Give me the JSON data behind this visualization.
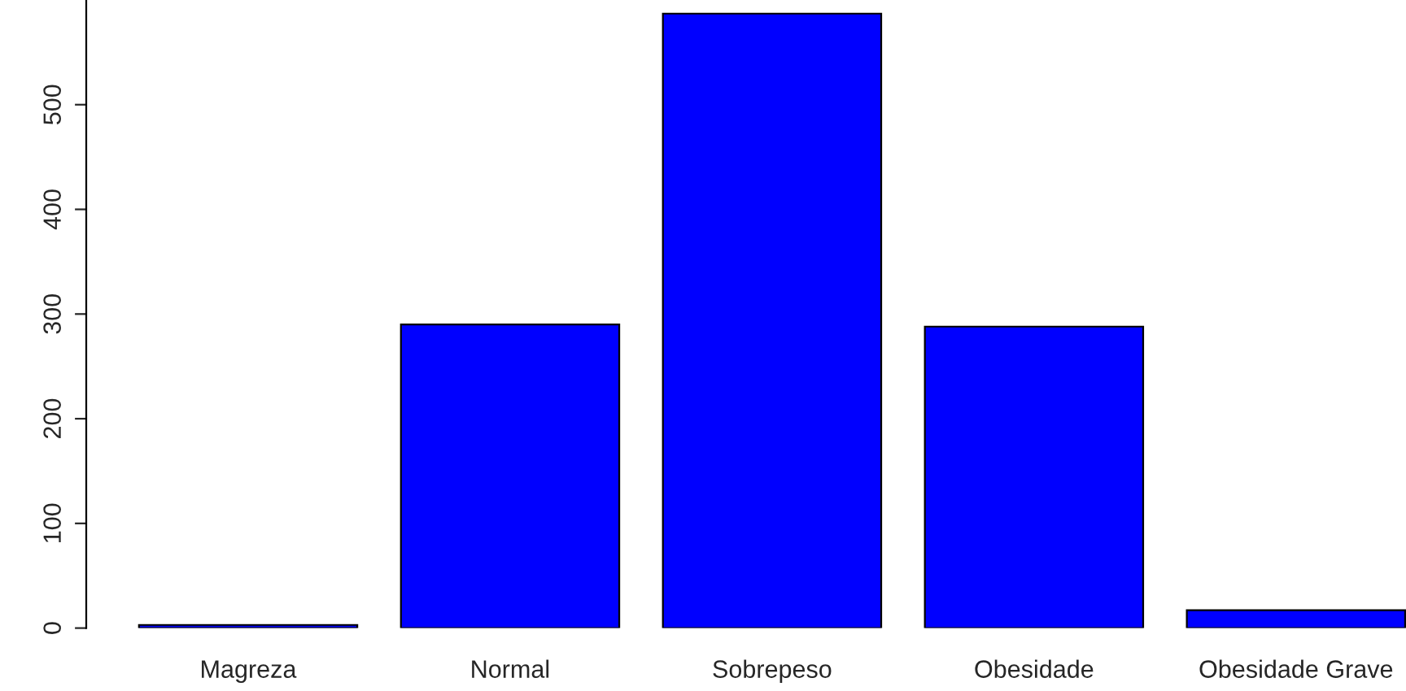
{
  "chart_data": {
    "type": "bar",
    "categories": [
      "Magreza",
      "Normal",
      "Sobrepeso",
      "Obesidade",
      "Obesidade Grave"
    ],
    "values": [
      3,
      290,
      587,
      288,
      17
    ],
    "color": "#0000ff",
    "ylim": [
      0,
      600
    ],
    "yticks": [
      0,
      100,
      200,
      300,
      400,
      500
    ],
    "grid": false,
    "legend": false
  }
}
